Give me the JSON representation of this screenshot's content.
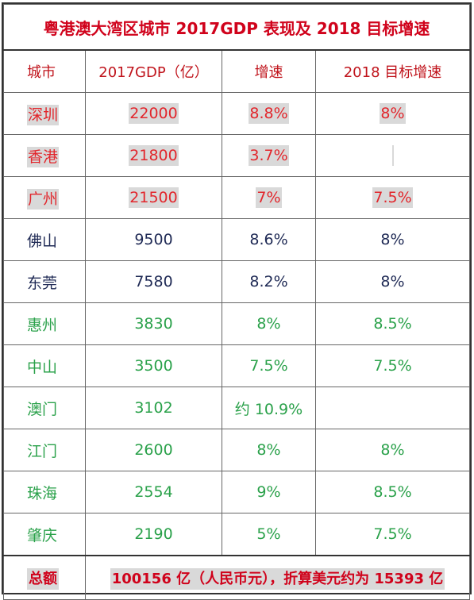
{
  "title": "粤港澳大湾区城市 2017GDP 表现及 2018 目标增速",
  "headers": [
    "城市",
    "2017GDP（亿）",
    "增速",
    "2018 目标增速"
  ],
  "rows": [
    {
      "city": "深圳",
      "gdp": "22000",
      "growth": "8.8%",
      "target": "8%",
      "group": "red"
    },
    {
      "city": "香港",
      "gdp": "21800",
      "growth": "3.7%",
      "target": "",
      "group": "red"
    },
    {
      "city": "广州",
      "gdp": "21500",
      "growth": "7%",
      "target": "7.5%",
      "group": "red"
    },
    {
      "city": "佛山",
      "gdp": "9500",
      "growth": "8.6%",
      "target": "8%",
      "group": "navy"
    },
    {
      "city": "东莞",
      "gdp": "7580",
      "growth": "8.2%",
      "target": "8%",
      "group": "navy"
    },
    {
      "city": "惠州",
      "gdp": "3830",
      "growth": "8%",
      "target": "8.5%",
      "group": "green"
    },
    {
      "city": "中山",
      "gdp": "3500",
      "growth": "7.5%",
      "target": "7.5%",
      "group": "green"
    },
    {
      "city": "澳门",
      "gdp": "3102",
      "growth": "约 10.9%",
      "target": "",
      "group": "green"
    },
    {
      "city": "江门",
      "gdp": "2600",
      "growth": "8%",
      "target": "8%",
      "group": "green"
    },
    {
      "city": "珠海",
      "gdp": "2554",
      "growth": "9%",
      "target": "8.5%",
      "group": "green"
    },
    {
      "city": "肇庆",
      "gdp": "2190",
      "growth": "5%",
      "target": "7.5%",
      "group": "green"
    }
  ],
  "total": {
    "label": "总额",
    "value": "100156 亿（人民币元），折算美元约为 15393 亿"
  },
  "colors": {
    "red": "#e2262c",
    "navy": "#1f2a55",
    "green": "#2aa14a",
    "highlight": "#d9d9d9"
  }
}
